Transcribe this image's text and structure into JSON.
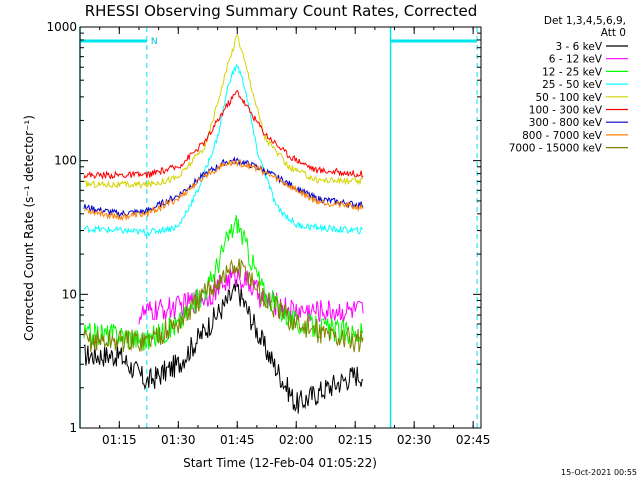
{
  "chart_data": {
    "type": "line",
    "title": "RHESSI Observing Summary Count Rates, Corrected",
    "xlabel": "Start Time (12-Feb-04 01:05:22)",
    "ylabel": "Corrected Count Rate (s⁻¹ detector⁻¹)",
    "y_scale": "log",
    "ylim": [
      1,
      1000
    ],
    "xlim": [
      "01:05",
      "02:47"
    ],
    "x_ticks": [
      "01:15",
      "01:30",
      "01:45",
      "02:00",
      "02:15",
      "02:30",
      "02:45"
    ],
    "y_ticks": [
      "1",
      "10",
      "100",
      "1000"
    ],
    "legend_header": [
      "Det 1,3,4,5,6,9,",
      "Att 0"
    ],
    "legend_position": "outside-right",
    "markers": {
      "night_label": "N",
      "night_bars": [
        [
          "01:05",
          "01:22"
        ],
        [
          "02:24",
          "02:46"
        ]
      ],
      "solid_lines": [
        "01:05",
        "02:24"
      ],
      "dashed_lines": [
        "01:22",
        "02:46"
      ]
    },
    "footer_date": "15-Oct-2021 00:55",
    "series": [
      {
        "name": "3 - 6 keV",
        "color": "#000000",
        "x": [
          "01:06",
          "01:15",
          "01:22",
          "01:30",
          "01:38",
          "01:45",
          "01:52",
          "02:00",
          "02:08",
          "02:15",
          "02:17"
        ],
        "values": [
          3.5,
          3.5,
          2.2,
          3,
          6,
          11,
          4,
          1.5,
          2,
          2.5,
          2.5
        ]
      },
      {
        "name": "6 - 12 keV",
        "color": "#ff00ff",
        "x": [
          "01:20",
          "01:24",
          "01:30",
          "01:38",
          "01:43",
          "01:45",
          "01:48",
          "01:52",
          "02:00",
          "02:08",
          "02:15",
          "02:17"
        ],
        "values": [
          7,
          7.5,
          8,
          10,
          13,
          14,
          12,
          9,
          7.5,
          7.5,
          7.5,
          7.5
        ]
      },
      {
        "name": "12 - 25 keV",
        "color": "#00ff00",
        "x": [
          "01:06",
          "01:15",
          "01:22",
          "01:30",
          "01:38",
          "01:43",
          "01:45",
          "01:48",
          "01:52",
          "02:00",
          "02:08",
          "02:15",
          "02:17"
        ],
        "values": [
          5,
          5,
          4.5,
          6,
          12,
          28,
          35,
          20,
          10,
          6,
          5.5,
          5,
          5
        ]
      },
      {
        "name": "25 - 50 keV",
        "color": "#00ffff",
        "x": [
          "01:06",
          "01:15",
          "01:22",
          "01:30",
          "01:35",
          "01:40",
          "01:43",
          "01:45",
          "01:47",
          "01:50",
          "01:55",
          "02:00",
          "02:08",
          "02:15",
          "02:17"
        ],
        "values": [
          31,
          30,
          29,
          32,
          60,
          150,
          400,
          520,
          350,
          120,
          45,
          33,
          31,
          30,
          30
        ]
      },
      {
        "name": "50 - 100 keV",
        "color": "#d4d400",
        "x": [
          "01:06",
          "01:15",
          "01:22",
          "01:30",
          "01:37",
          "01:42",
          "01:45",
          "01:48",
          "01:52",
          "01:58",
          "02:05",
          "02:15",
          "02:17"
        ],
        "values": [
          67,
          66,
          66,
          75,
          130,
          450,
          880,
          420,
          150,
          90,
          72,
          70,
          70
        ]
      },
      {
        "name": "100 - 300 keV",
        "color": "#ff0000",
        "x": [
          "01:06",
          "01:15",
          "01:22",
          "01:30",
          "01:37",
          "01:42",
          "01:45",
          "01:48",
          "01:52",
          "01:58",
          "02:05",
          "02:15",
          "02:17"
        ],
        "values": [
          78,
          78,
          78,
          90,
          140,
          250,
          330,
          240,
          160,
          110,
          85,
          80,
          80
        ]
      },
      {
        "name": "300 - 800 keV",
        "color": "#0000cc",
        "x": [
          "01:06",
          "01:15",
          "01:22",
          "01:30",
          "01:37",
          "01:42",
          "01:45",
          "01:50",
          "01:57",
          "02:05",
          "02:15",
          "02:17"
        ],
        "values": [
          45,
          40,
          42,
          55,
          80,
          98,
          100,
          90,
          70,
          52,
          47,
          47
        ]
      },
      {
        "name": "800 - 7000 keV",
        "color": "#ff8000",
        "x": [
          "01:06",
          "01:15",
          "01:22",
          "01:30",
          "01:37",
          "01:42",
          "01:45",
          "01:50",
          "01:57",
          "02:05",
          "02:15",
          "02:17"
        ],
        "values": [
          43,
          38,
          40,
          52,
          78,
          95,
          97,
          88,
          68,
          50,
          45,
          45
        ]
      },
      {
        "name": "7000 - 15000 keV",
        "color": "#808000",
        "x": [
          "01:06",
          "01:15",
          "01:22",
          "01:30",
          "01:38",
          "01:43",
          "01:45",
          "01:48",
          "01:52",
          "02:00",
          "02:08",
          "02:15",
          "02:17"
        ],
        "values": [
          4.5,
          4.5,
          4.5,
          6,
          11,
          15,
          16,
          14,
          9,
          6,
          5,
          4.5,
          4.5
        ]
      }
    ]
  }
}
